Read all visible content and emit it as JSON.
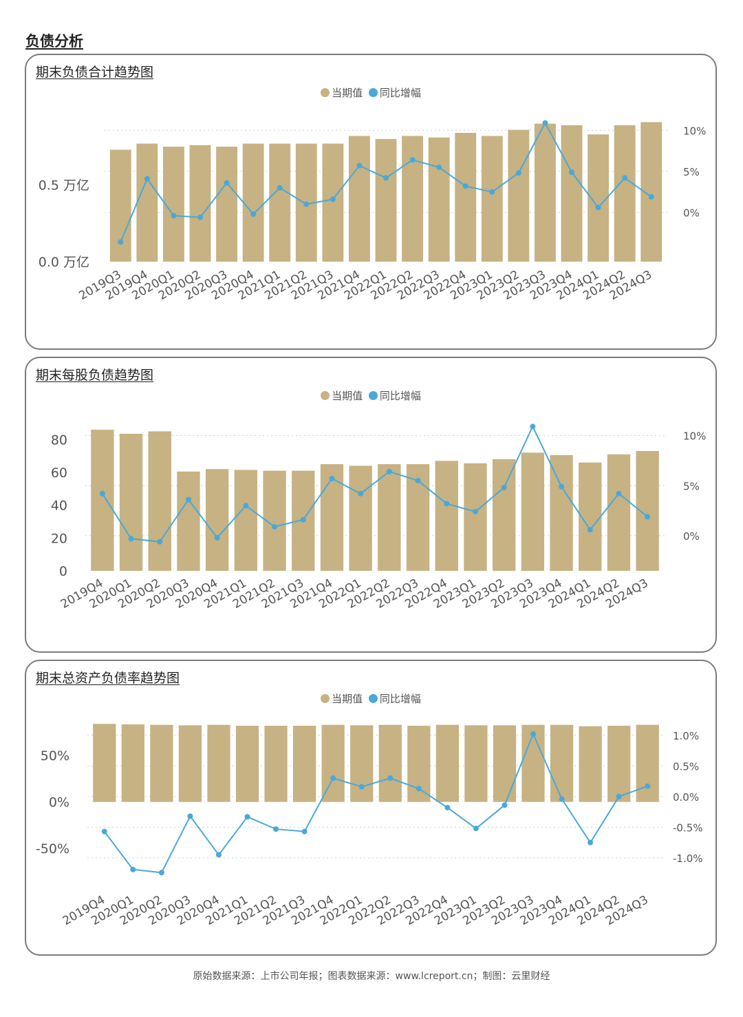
{
  "section_title": "负债分析",
  "footer": "原始数据来源：上市公司年报；图表数据来源：www.lcreport.cn；制图：云里财经",
  "legend": {
    "bar_label": "当期值",
    "line_label": "同比增幅"
  },
  "colors": {
    "bar": "#c6b283",
    "line": "#4aa8d8",
    "axis_text": "#555555",
    "grid": "#cfcfcf"
  },
  "chart_data": [
    {
      "type": "bar+line",
      "title": "期末负债合计趋势图",
      "categories": [
        "2019Q3",
        "2019Q4",
        "2020Q1",
        "2020Q2",
        "2020Q3",
        "2020Q4",
        "2021Q1",
        "2021Q2",
        "2021Q3",
        "2021Q4",
        "2022Q1",
        "2022Q2",
        "2022Q3",
        "2022Q4",
        "2023Q1",
        "2023Q2",
        "2023Q3",
        "2023Q4",
        "2024Q1",
        "2024Q2",
        "2024Q3"
      ],
      "series": [
        {
          "name": "当期值",
          "axis": "left",
          "kind": "bar",
          "values": [
            0.73,
            0.77,
            0.75,
            0.76,
            0.75,
            0.77,
            0.77,
            0.77,
            0.77,
            0.82,
            0.8,
            0.82,
            0.81,
            0.84,
            0.82,
            0.86,
            0.9,
            0.89,
            0.83,
            0.89,
            0.91
          ]
        },
        {
          "name": "同比增幅",
          "axis": "right",
          "kind": "line",
          "values": [
            -3.6,
            4.1,
            -0.4,
            -0.6,
            3.6,
            -0.2,
            3.0,
            1.0,
            1.6,
            5.7,
            4.2,
            6.4,
            5.5,
            3.2,
            2.5,
            4.8,
            10.9,
            4.9,
            0.6,
            4.2,
            1.9
          ]
        }
      ],
      "left_axis": {
        "ticks": [
          0.0,
          0.5
        ],
        "tick_labels": [
          "0.0 万亿",
          "0.5 万亿"
        ],
        "range": [
          0.0,
          0.9208
        ]
      },
      "right_axis": {
        "ticks": [
          0,
          5,
          10
        ],
        "tick_labels": [
          "0%",
          "5%",
          "10%"
        ],
        "range": [
          -6.0,
          11.2
        ]
      }
    },
    {
      "type": "bar+line",
      "title": "期末每股负债趋势图",
      "categories": [
        "2019Q4",
        "2020Q1",
        "2020Q2",
        "2020Q3",
        "2020Q4",
        "2021Q1",
        "2021Q2",
        "2021Q3",
        "2021Q4",
        "2022Q1",
        "2022Q2",
        "2022Q3",
        "2022Q4",
        "2023Q1",
        "2023Q2",
        "2023Q3",
        "2023Q4",
        "2024Q1",
        "2024Q2",
        "2024Q3"
      ],
      "series": [
        {
          "name": "当期值",
          "axis": "left",
          "kind": "bar",
          "values": [
            86,
            83.5,
            85,
            60.5,
            62,
            61.5,
            61,
            61,
            65,
            64,
            65,
            65,
            67,
            65.5,
            68,
            72,
            70.5,
            66,
            71,
            73
          ]
        },
        {
          "name": "同比增幅",
          "axis": "right",
          "kind": "line",
          "values": [
            4.2,
            -0.3,
            -0.6,
            3.6,
            -0.2,
            3.0,
            0.9,
            1.6,
            5.7,
            4.2,
            6.4,
            5.5,
            3.2,
            2.4,
            4.8,
            10.9,
            4.9,
            0.6,
            4.2,
            1.9
          ]
        }
      ],
      "left_axis": {
        "ticks": [
          0,
          20,
          40,
          60,
          80
        ],
        "tick_labels": [
          "0",
          "20",
          "40",
          "60",
          "80"
        ],
        "range": [
          0,
          89.8
        ]
      },
      "right_axis": {
        "ticks": [
          0,
          5,
          10
        ],
        "tick_labels": [
          "0%",
          "5%",
          "10%"
        ],
        "range": [
          -3.5,
          11.2
        ]
      }
    },
    {
      "type": "bar+line",
      "title": "期末总资产负债率趋势图",
      "categories": [
        "2019Q4",
        "2020Q1",
        "2020Q2",
        "2020Q3",
        "2020Q4",
        "2021Q1",
        "2021Q2",
        "2021Q3",
        "2021Q4",
        "2022Q1",
        "2022Q2",
        "2022Q3",
        "2022Q4",
        "2023Q1",
        "2023Q2",
        "2023Q3",
        "2023Q4",
        "2024Q1",
        "2024Q2",
        "2024Q3"
      ],
      "series": [
        {
          "name": "当期值",
          "axis": "left",
          "kind": "bar",
          "values": [
            84,
            83.5,
            83,
            82.5,
            83,
            82,
            82,
            82,
            83,
            82.5,
            83,
            82,
            83,
            82.5,
            82.5,
            83,
            83,
            81.5,
            82,
            83
          ]
        },
        {
          "name": "同比增幅",
          "axis": "right",
          "kind": "line",
          "values": [
            -0.57,
            -1.19,
            -1.24,
            -0.32,
            -0.95,
            -0.33,
            -0.53,
            -0.57,
            0.3,
            0.16,
            0.3,
            0.13,
            -0.18,
            -0.52,
            -0.14,
            1.02,
            -0.04,
            -0.75,
            0.0,
            0.17
          ]
        }
      ],
      "left_axis": {
        "ticks": [
          -50,
          0,
          50
        ],
        "tick_labels": [
          "-50%",
          "0%",
          "50%"
        ],
        "range": [
          -90,
          85
        ]
      },
      "right_axis": {
        "ticks": [
          -1.0,
          -0.5,
          0.0,
          0.5,
          1.0
        ],
        "tick_labels": [
          "-1.0%",
          "-0.5%",
          "0.0%",
          "0.5%",
          "1.0%"
        ],
        "range": [
          -1.45,
          1.2
        ]
      }
    }
  ]
}
